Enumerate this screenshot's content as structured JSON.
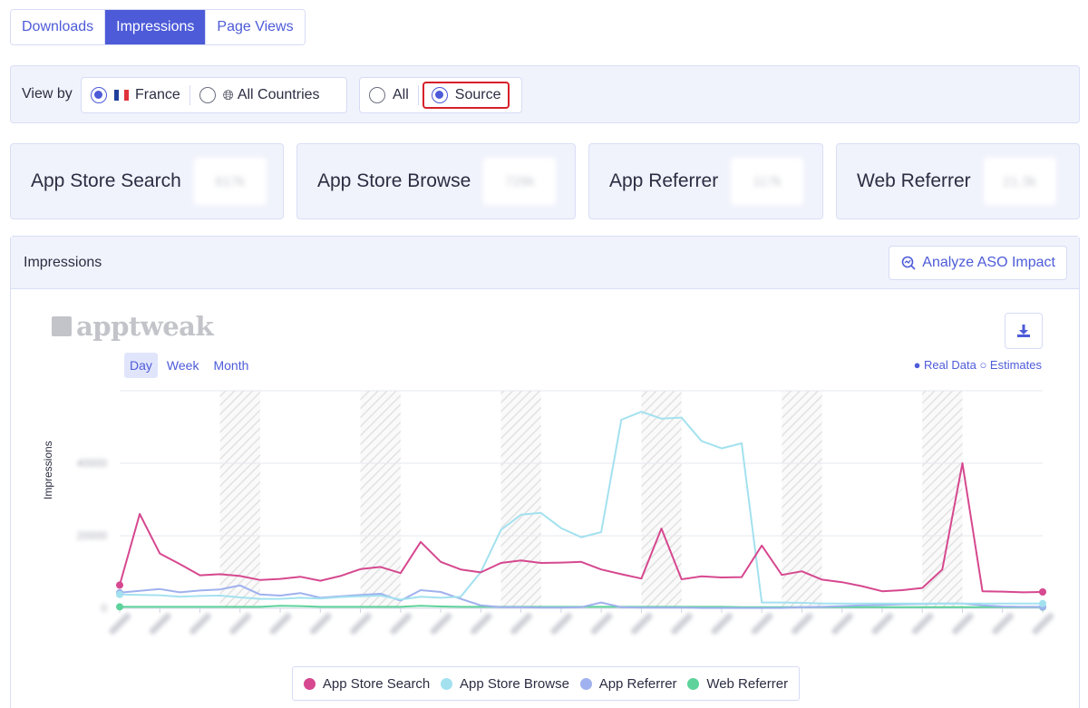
{
  "tabs": [
    {
      "label": "Downloads",
      "active": false
    },
    {
      "label": "Impressions",
      "active": true
    },
    {
      "label": "Page Views",
      "active": false
    }
  ],
  "view_by": {
    "label": "View by",
    "country_options": [
      {
        "label": "France",
        "checked": true,
        "icon": "france-flag-icon"
      },
      {
        "label": "All Countries",
        "checked": false,
        "icon": "globe-icon"
      }
    ],
    "mode_options": [
      {
        "label": "All",
        "checked": false
      },
      {
        "label": "Source",
        "checked": true
      }
    ]
  },
  "kpis": [
    {
      "label": "App Store Search",
      "value": "617k"
    },
    {
      "label": "App Store Browse",
      "value": "729k"
    },
    {
      "label": "App Referrer",
      "value": "117k"
    },
    {
      "label": "Web Referrer",
      "value": "21.3k"
    }
  ],
  "panel": {
    "title": "Impressions",
    "analyze_button": "Analyze ASO Impact",
    "logo_text": "apptweak",
    "periods": [
      {
        "label": "Day",
        "active": true
      },
      {
        "label": "Week",
        "active": false
      },
      {
        "label": "Month",
        "active": false
      }
    ],
    "data_legend": "● Real Data ○ Estimates"
  },
  "colors": {
    "accent": "#4d5bd8",
    "search": "#d6488f",
    "browse": "#a3e1ef",
    "referrer": "#9fb1ee",
    "web": "#5dd39b",
    "highlight": "#d71f2a"
  },
  "chart_data": {
    "type": "line",
    "ylabel": "Impressions",
    "x": [
      1,
      2,
      3,
      4,
      5,
      6,
      7,
      8,
      9,
      10,
      11,
      12,
      13,
      14,
      15,
      16,
      17,
      18,
      19,
      20,
      21,
      22,
      23,
      24,
      25,
      26,
      27,
      28,
      29,
      30,
      31,
      32,
      33,
      34,
      35,
      36,
      37,
      38,
      39,
      40,
      41,
      42,
      43,
      44,
      45,
      46,
      47
    ],
    "y_ticks": [
      "0",
      "20000",
      "40000"
    ],
    "ylim": [
      0,
      60000
    ],
    "series": [
      {
        "name": "App Store Search",
        "values": [
          6400,
          26000,
          15100,
          12200,
          9100,
          9400,
          8900,
          7800,
          8100,
          8700,
          7600,
          8900,
          10800,
          11400,
          9700,
          18300,
          12800,
          10700,
          9900,
          12500,
          13200,
          12500,
          12600,
          12800,
          10700,
          9400,
          8200,
          22000,
          8000,
          8800,
          8500,
          8600,
          17300,
          9200,
          10200,
          7900,
          7200,
          6100,
          4700,
          5000,
          5600,
          10700,
          40000,
          4700,
          4600,
          4400,
          4500
        ]
      },
      {
        "name": "App Store Browse",
        "values": [
          3800,
          3700,
          3600,
          3200,
          3400,
          3500,
          3000,
          2600,
          2600,
          2900,
          2700,
          3100,
          3300,
          3500,
          2400,
          3200,
          2900,
          3200,
          10000,
          21600,
          25800,
          26300,
          22100,
          19600,
          21000,
          52000,
          54200,
          52300,
          52600,
          46100,
          44100,
          45500,
          1600,
          1600,
          1500,
          1300,
          1300,
          1300,
          1300,
          1300,
          1300,
          1300,
          1300,
          1300,
          1300,
          1300,
          1300
        ]
      },
      {
        "name": "App Referrer",
        "values": [
          4300,
          4800,
          5300,
          4400,
          4900,
          5200,
          6300,
          3800,
          3500,
          4200,
          2900,
          3300,
          3700,
          4000,
          2100,
          5000,
          4500,
          2600,
          800,
          300,
          300,
          200,
          200,
          300,
          1600,
          300,
          200,
          200,
          200,
          100,
          100,
          100,
          100,
          100,
          300,
          400,
          600,
          800,
          900,
          1100,
          1200,
          1300,
          1300,
          800,
          500,
          400,
          400
        ]
      },
      {
        "name": "Web Referrer",
        "values": [
          400,
          400,
          400,
          400,
          400,
          400,
          400,
          400,
          700,
          600,
          400,
          400,
          400,
          400,
          400,
          700,
          500,
          400,
          400,
          400,
          400,
          400,
          400,
          400,
          400,
          400,
          400,
          400,
          400,
          400,
          400,
          300,
          300,
          300,
          300,
          300,
          300,
          300,
          300,
          300,
          300,
          300,
          300,
          300,
          300,
          300,
          300
        ]
      }
    ]
  }
}
